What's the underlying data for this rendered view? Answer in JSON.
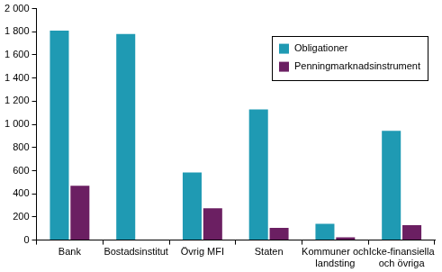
{
  "chart_data": {
    "type": "bar",
    "categories": [
      "Bank",
      "Bostadsinstitut",
      "Övrig MFI",
      "Staten",
      "Kommuner och landsting",
      "Icke-finansiella och övriga"
    ],
    "series": [
      {
        "name": "Obligationer",
        "color": "#1f9ab3",
        "values": [
          1810,
          1780,
          585,
          1130,
          140,
          945
        ]
      },
      {
        "name": "Penningmarknadsinstrument",
        "color": "#6b1f62",
        "values": [
          470,
          0,
          275,
          105,
          25,
          130
        ]
      }
    ],
    "ylim": [
      0,
      2000
    ],
    "yticks": [
      0,
      200,
      400,
      600,
      800,
      {
        "value": 1000,
        "label": "1 000"
      },
      {
        "value": 1200,
        "label": "1 200"
      },
      {
        "value": 1400,
        "label": "1 400"
      },
      {
        "value": 1600,
        "label": "1 600"
      },
      {
        "value": 1800,
        "label": "1 800"
      },
      {
        "value": 2000,
        "label": "2 000"
      }
    ],
    "grid": false,
    "legend": "upper right"
  }
}
